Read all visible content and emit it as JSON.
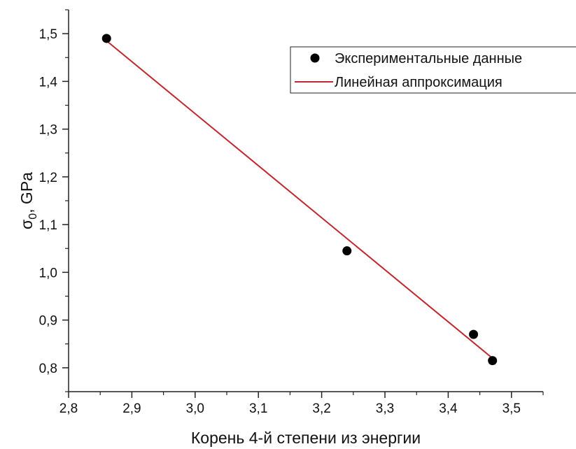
{
  "chart_data": {
    "type": "scatter",
    "title": "",
    "xlabel": "Корень 4-й степени из энергии",
    "ylabel": "σ",
    "ylabel_sub": "0",
    "ylabel_suffix": ", GPa",
    "xlim": [
      2.8,
      3.55
    ],
    "ylim": [
      0.75,
      1.55
    ],
    "x_ticks": [
      {
        "value": 2.8,
        "label": "2,8"
      },
      {
        "value": 2.9,
        "label": "2,9"
      },
      {
        "value": 3.0,
        "label": "3,0"
      },
      {
        "value": 3.1,
        "label": "3,1"
      },
      {
        "value": 3.2,
        "label": "3,2"
      },
      {
        "value": 3.3,
        "label": "3,3"
      },
      {
        "value": 3.4,
        "label": "3,4"
      },
      {
        "value": 3.5,
        "label": "3,5"
      }
    ],
    "y_ticks": [
      {
        "value": 0.8,
        "label": "0,8"
      },
      {
        "value": 0.9,
        "label": "0,9"
      },
      {
        "value": 1.0,
        "label": "1,0"
      },
      {
        "value": 1.1,
        "label": "1,1"
      },
      {
        "value": 1.2,
        "label": "1,2"
      },
      {
        "value": 1.3,
        "label": "1,3"
      },
      {
        "value": 1.4,
        "label": "1,4"
      },
      {
        "value": 1.5,
        "label": "1,5"
      }
    ],
    "grid": false,
    "legend_position": "top-right",
    "series": [
      {
        "name": "Экспериментальные данные",
        "kind": "scatter",
        "color": "#000000",
        "points": [
          {
            "x": 2.86,
            "y": 1.49
          },
          {
            "x": 3.24,
            "y": 1.045
          },
          {
            "x": 3.44,
            "y": 0.87
          },
          {
            "x": 3.47,
            "y": 0.815
          }
        ]
      },
      {
        "name": "Линейная аппроксимация",
        "kind": "line",
        "color": "#c0262d",
        "points": [
          {
            "x": 2.86,
            "y": 1.485
          },
          {
            "x": 3.47,
            "y": 0.82
          }
        ]
      }
    ]
  }
}
